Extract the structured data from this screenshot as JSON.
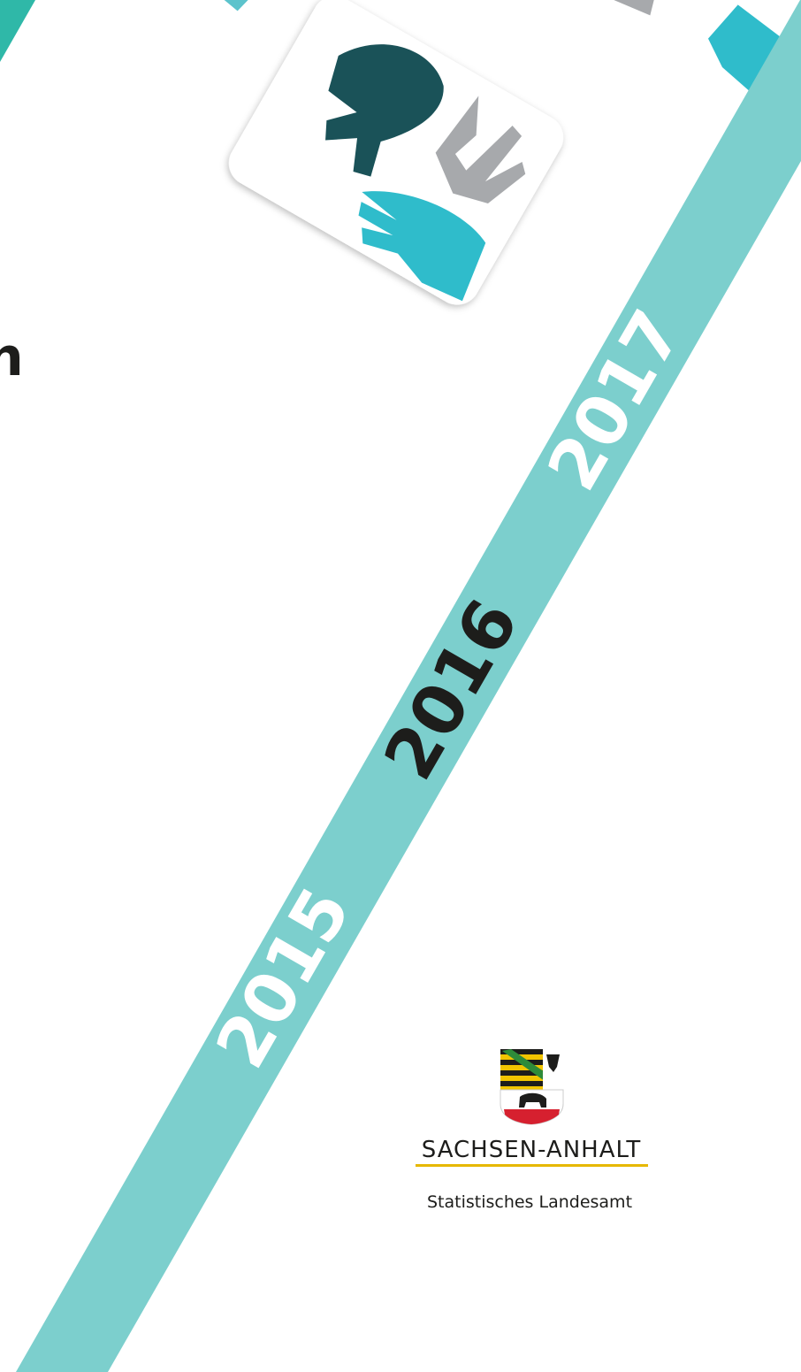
{
  "title_fragment": "n",
  "years": [
    "2015",
    "2016",
    "2017"
  ],
  "logo": {
    "state": "SACHSEN-ANHALT",
    "office": "Statistisches Landesamt"
  }
}
